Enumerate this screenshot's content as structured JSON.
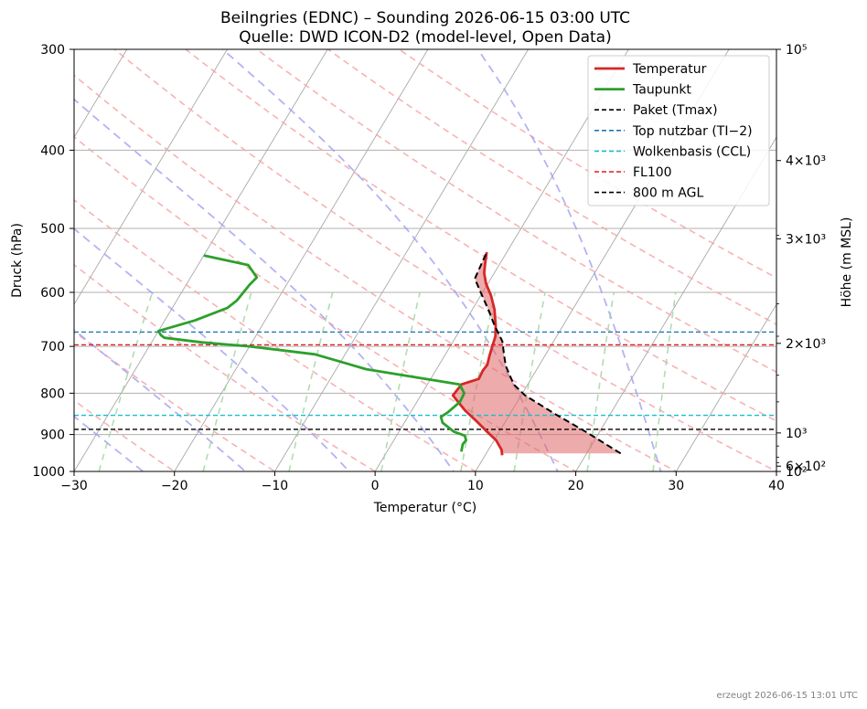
{
  "chart_data": {
    "type": "line",
    "title": "Beilngries (EDNC) – Sounding 2026-06-15 03:00 UTC",
    "subtitle": "Quelle: DWD ICON-D2 (model-level, Open Data)",
    "xlabel": "Temperatur (°C)",
    "ylabel": "Druck (hPa)",
    "y2label": "Höhe (m MSL)",
    "xlim": [
      -30,
      40
    ],
    "ylim": [
      1000,
      300
    ],
    "y_scale": "log",
    "x_ticks": [
      "−30",
      "−20",
      "−10",
      "0",
      "10",
      "20",
      "30",
      "40"
    ],
    "x_tick_values": [
      -30,
      -20,
      -10,
      0,
      10,
      20,
      30,
      40
    ],
    "y_ticks": [
      300,
      400,
      500,
      600,
      700,
      800,
      900,
      1000
    ],
    "y2_ticks": [
      {
        "label": "10⁵",
        "pressure": 300
      },
      {
        "label": "4×10³",
        "pressure": 412
      },
      {
        "label": "3×10³",
        "pressure": 515
      },
      {
        "label": "2×10³",
        "pressure": 694
      },
      {
        "label": "10³",
        "pressure": 896
      },
      {
        "label": "6×10²",
        "pressure": 985
      },
      {
        "label": "10²",
        "pressure": 1000
      }
    ],
    "grid": true,
    "legend_position": "top-right",
    "series": [
      {
        "name": "Temperatur",
        "color": "#d62728",
        "style": "solid",
        "points": [
          [
            11.7,
            955
          ],
          [
            11.3,
            940
          ],
          [
            10.2,
            915
          ],
          [
            8.6,
            890
          ],
          [
            7.0,
            865
          ],
          [
            5.3,
            840
          ],
          [
            3.2,
            805
          ],
          [
            3.4,
            780
          ],
          [
            4.8,
            768
          ],
          [
            4.7,
            750
          ],
          [
            4.8,
            738
          ],
          [
            4.5,
            720
          ],
          [
            4.2,
            700
          ],
          [
            3.9,
            680
          ],
          [
            3.3,
            660
          ],
          [
            2.2,
            630
          ],
          [
            1.0,
            605
          ],
          [
            -0.2,
            585
          ],
          [
            -1.0,
            568
          ],
          [
            -1.5,
            552
          ],
          [
            -2.0,
            535
          ]
        ]
      },
      {
        "name": "Taupunkt",
        "color": "#2ca02c",
        "style": "solid",
        "points": [
          [
            7.4,
            945
          ],
          [
            7.1,
            925
          ],
          [
            7.2,
            915
          ],
          [
            6.8,
            903
          ],
          [
            5.5,
            893
          ],
          [
            3.8,
            870
          ],
          [
            3.3,
            856
          ],
          [
            3.7,
            845
          ],
          [
            4.3,
            820
          ],
          [
            4.2,
            800
          ],
          [
            3.2,
            780
          ],
          [
            -7.0,
            747
          ],
          [
            -13.0,
            716
          ],
          [
            -20.0,
            700
          ],
          [
            -25.0,
            692
          ],
          [
            -29.0,
            683
          ],
          [
            -29.5,
            678
          ],
          [
            -30.0,
            670
          ],
          [
            -27.0,
            650
          ],
          [
            -24.5,
            627
          ],
          [
            -24.0,
            614
          ],
          [
            -23.7,
            588
          ],
          [
            -23.4,
            575
          ],
          [
            -25.0,
            555
          ],
          [
            -30.0,
            540
          ]
        ]
      },
      {
        "name": "Paket (Tmax)",
        "color": "#000000",
        "style": "dashed",
        "points": [
          [
            23.4,
            950
          ],
          [
            18.8,
            895
          ],
          [
            14.6,
            850
          ],
          [
            10.4,
            805
          ],
          [
            8.6,
            780
          ],
          [
            6.7,
            740
          ],
          [
            5.8,
            715
          ],
          [
            4.9,
            690
          ],
          [
            3.2,
            660
          ],
          [
            1.7,
            632
          ],
          [
            -0.2,
            600
          ],
          [
            -1.6,
            577
          ],
          [
            -2.0,
            535
          ]
        ]
      }
    ],
    "fill_region": {
      "name": "CAPE",
      "color": "#e06666"
    },
    "lines_hlines": [
      {
        "name": "Top nutzbar (TI−2)",
        "pressure": 672,
        "color": "#1f77b4"
      },
      {
        "name": "Wolkenbasis (CCL)",
        "pressure": 852,
        "color": "#17becf"
      },
      {
        "name": "FL100",
        "pressure": 697,
        "color": "#e41a1c"
      },
      {
        "name": "800 m AGL",
        "pressure": 887,
        "color": "#000000"
      }
    ]
  },
  "legend": [
    {
      "label": "Temperatur",
      "color": "#d62728",
      "dash": "solid"
    },
    {
      "label": "Taupunkt",
      "color": "#2ca02c",
      "dash": "solid"
    },
    {
      "label": "Paket (Tmax)",
      "color": "#000000",
      "dash": "dashed"
    },
    {
      "label": "Top nutzbar (TI−2)",
      "color": "#1f77b4",
      "dash": "dashed"
    },
    {
      "label": "Wolkenbasis (CCL)",
      "color": "#17becf",
      "dash": "dashed"
    },
    {
      "label": "FL100",
      "color": "#e41a1c",
      "dash": "dashed"
    },
    {
      "label": "800 m AGL",
      "color": "#000000",
      "dash": "dashed"
    }
  ],
  "footer": "erzeugt 2026-06-15 13:01 UTC"
}
